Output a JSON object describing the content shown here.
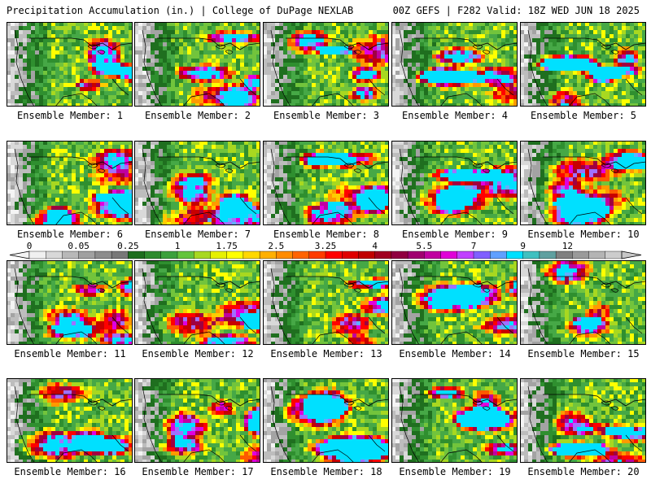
{
  "header": {
    "left": "Precipitation Accumulation (in.) | College of DuPage NEXLAB",
    "right": "00Z GEFS | F282 Valid: 18Z WED JUN 18 2025"
  },
  "members": [
    "Ensemble Member: 1",
    "Ensemble Member: 2",
    "Ensemble Member: 3",
    "Ensemble Member: 4",
    "Ensemble Member: 5",
    "Ensemble Member: 6",
    "Ensemble Member: 7",
    "Ensemble Member: 8",
    "Ensemble Member: 9",
    "Ensemble Member: 10",
    "Ensemble Member: 11",
    "Ensemble Member: 12",
    "Ensemble Member: 13",
    "Ensemble Member: 14",
    "Ensemble Member: 15",
    "Ensemble Member: 16",
    "Ensemble Member: 17",
    "Ensemble Member: 18",
    "Ensemble Member: 19",
    "Ensemble Member: 20"
  ],
  "colorbar": {
    "labels": [
      "0",
      "0.05",
      "0.25",
      "1",
      "1.75",
      "2.5",
      "3.25",
      "4",
      "5.5",
      "7",
      "9",
      "12"
    ],
    "colors": [
      "#f0f0f0",
      "#d8d8d8",
      "#b8b8b8",
      "#a0a0a0",
      "#8c8c8c",
      "#787878",
      "#1e6e1e",
      "#2e8b2e",
      "#3ca03c",
      "#64c43c",
      "#a8d820",
      "#e6f000",
      "#ffff00",
      "#ffd800",
      "#ffb000",
      "#ff8c00",
      "#ff6400",
      "#ff3c00",
      "#ff0000",
      "#e00000",
      "#c00000",
      "#a00020",
      "#900040",
      "#a00070",
      "#c000a0",
      "#e000d8",
      "#c040ff",
      "#8060ff",
      "#60a0ff",
      "#00e0ff",
      "#40c0c0",
      "#60a0a0",
      "#808080",
      "#9a9a9a",
      "#b4b4b4",
      "#cccccc"
    ]
  },
  "palette": {
    "dry_grays": [
      "#f4f4f4",
      "#d9d9d9",
      "#bdbdbd",
      "#a3a3a3"
    ],
    "greens": [
      "#1f6f1f",
      "#2f8f2f",
      "#46a846",
      "#72c43c",
      "#a8d820"
    ],
    "warm": [
      "#ffff00",
      "#ffcc00",
      "#ff9a00",
      "#ff5a00",
      "#ff0000",
      "#c80000"
    ],
    "heavy": [
      "#a00040",
      "#c000a0",
      "#e000e0",
      "#a070ff",
      "#60b0ff",
      "#00e0ff"
    ]
  }
}
